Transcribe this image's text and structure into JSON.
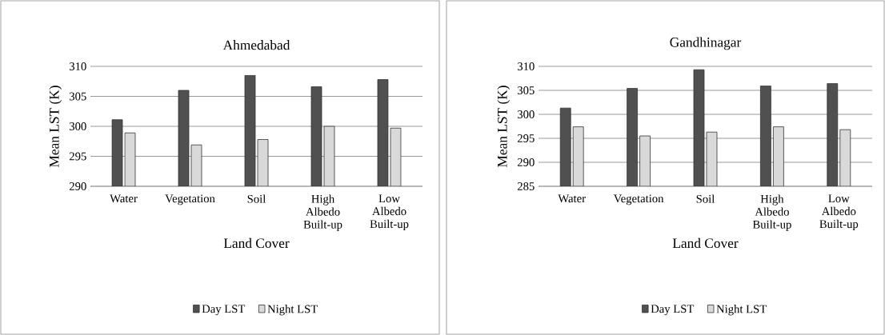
{
  "chart_data": [
    {
      "type": "bar",
      "title": "Ahmedabad",
      "xlabel": "Land Cover",
      "ylabel": "Mean LST (K)",
      "categories": [
        "Water",
        "Vegetation",
        "Soil",
        "High Albedo Built-up",
        "Low Albedo Built-up"
      ],
      "series": [
        {
          "name": "Day LST",
          "color": "#505050",
          "values": [
            301.1,
            306.0,
            308.5,
            306.6,
            307.8
          ]
        },
        {
          "name": "Night LST",
          "color": "#d9d9d9",
          "values": [
            298.9,
            296.9,
            297.8,
            300.0,
            299.7
          ]
        }
      ],
      "ylim": [
        290,
        310
      ],
      "yticks": [
        290,
        295,
        300,
        305,
        310
      ],
      "grid": "y",
      "legend": "bottom"
    },
    {
      "type": "bar",
      "title": "Gandhinagar",
      "xlabel": "Land Cover",
      "ylabel": "Mean LST (K)",
      "categories": [
        "Water",
        "Vegetation",
        "Soil",
        "High Albedo Built-up",
        "Low Albedo Built-up"
      ],
      "series": [
        {
          "name": "Day LST",
          "color": "#505050",
          "values": [
            301.3,
            305.4,
            309.3,
            305.9,
            306.4
          ]
        },
        {
          "name": "Night LST",
          "color": "#d9d9d9",
          "values": [
            297.4,
            295.5,
            296.3,
            297.4,
            296.8
          ]
        }
      ],
      "ylim": [
        285,
        310
      ],
      "yticks": [
        285,
        290,
        295,
        300,
        305,
        310
      ],
      "grid": "y",
      "legend": "bottom"
    }
  ]
}
